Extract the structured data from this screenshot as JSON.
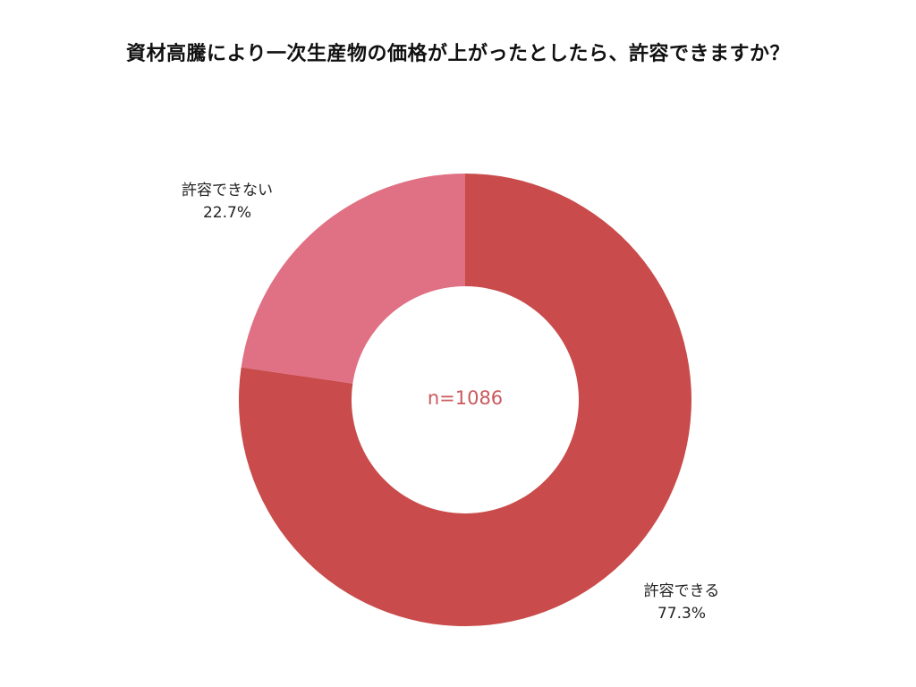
{
  "chart_data": {
    "type": "pie",
    "variant": "donut",
    "title": "資材高騰により一次生産物の価格が上がったとしたら、許容できますか？",
    "center_label": "n=1086",
    "slices": [
      {
        "label": "許容できる",
        "value": 77.3,
        "value_label": "77.3%",
        "color": "#c94b4b"
      },
      {
        "label": "許容できない",
        "value": 22.7,
        "value_label": "22.7%",
        "color": "#e07083"
      }
    ],
    "start": "top",
    "direction": "clockwise",
    "legend": "none",
    "colors": {
      "center_text": "#c95a5e",
      "label_text": "#222222"
    }
  }
}
